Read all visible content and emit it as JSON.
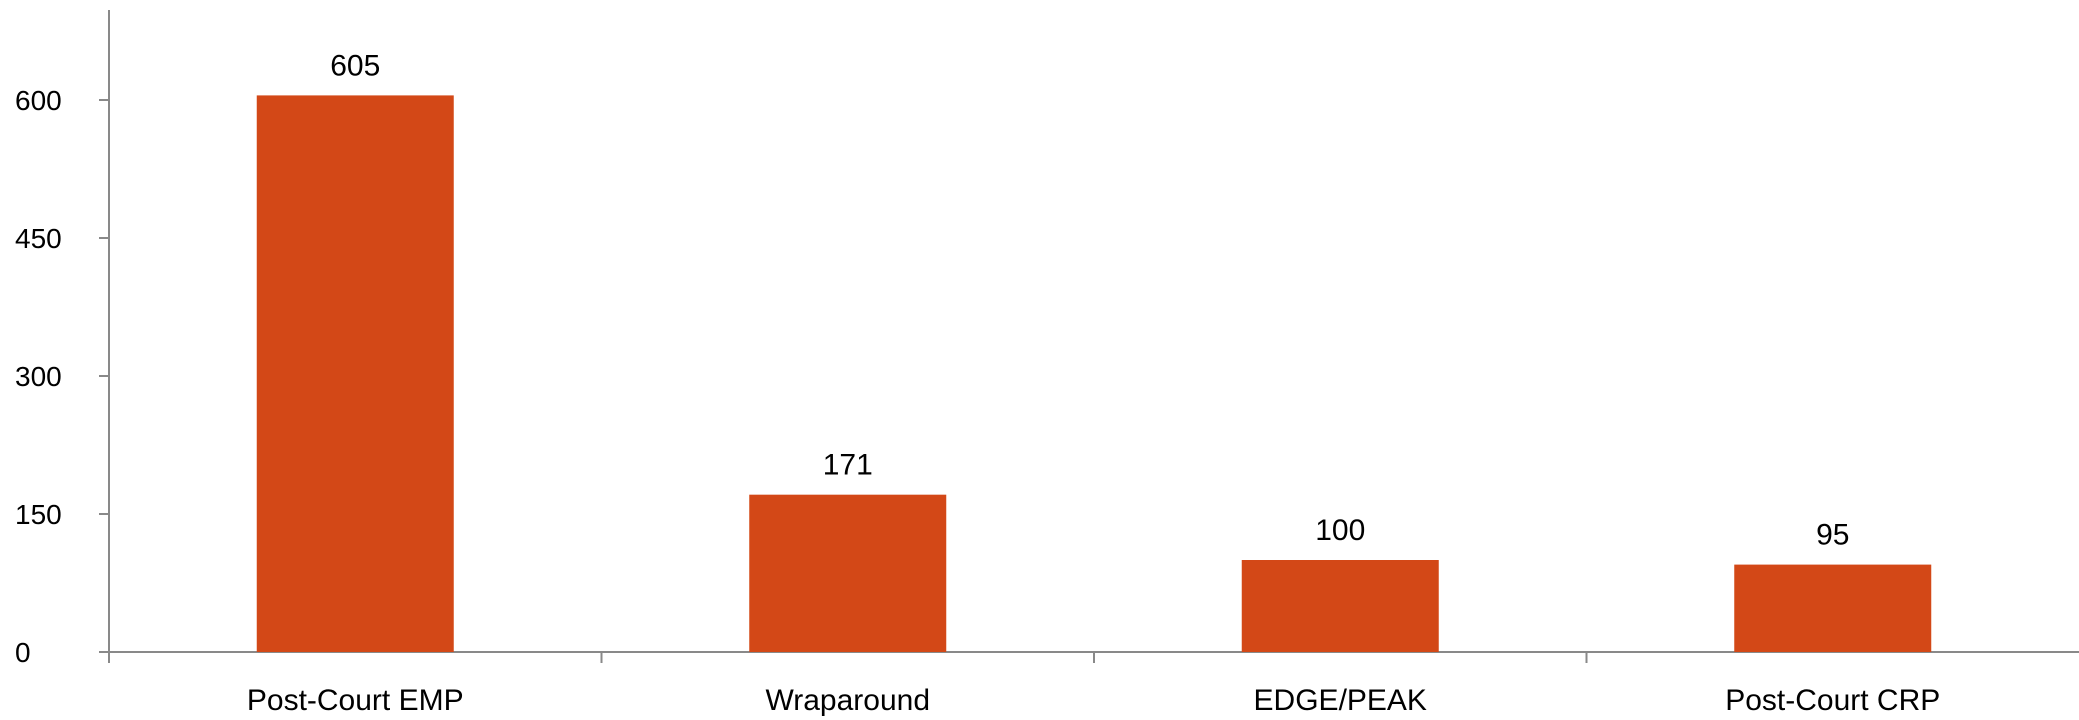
{
  "chart_data": {
    "type": "bar",
    "categories": [
      "Post-Court EMP",
      "Wraparound",
      "EDGE/PEAK",
      "Post-Court CRP"
    ],
    "values": [
      605,
      171,
      100,
      95
    ],
    "data_labels": [
      "605",
      "171",
      "100",
      "95"
    ],
    "y_ticks": [
      0,
      150,
      300,
      450,
      600
    ],
    "y_tick_labels": [
      "0",
      "150",
      "300",
      "450",
      "600"
    ],
    "ylim": [
      0,
      700
    ],
    "title": "",
    "xlabel": "",
    "ylabel": "",
    "grid": false,
    "legend": "none",
    "bar_color": "#D34817",
    "axis_color": "#898989"
  }
}
